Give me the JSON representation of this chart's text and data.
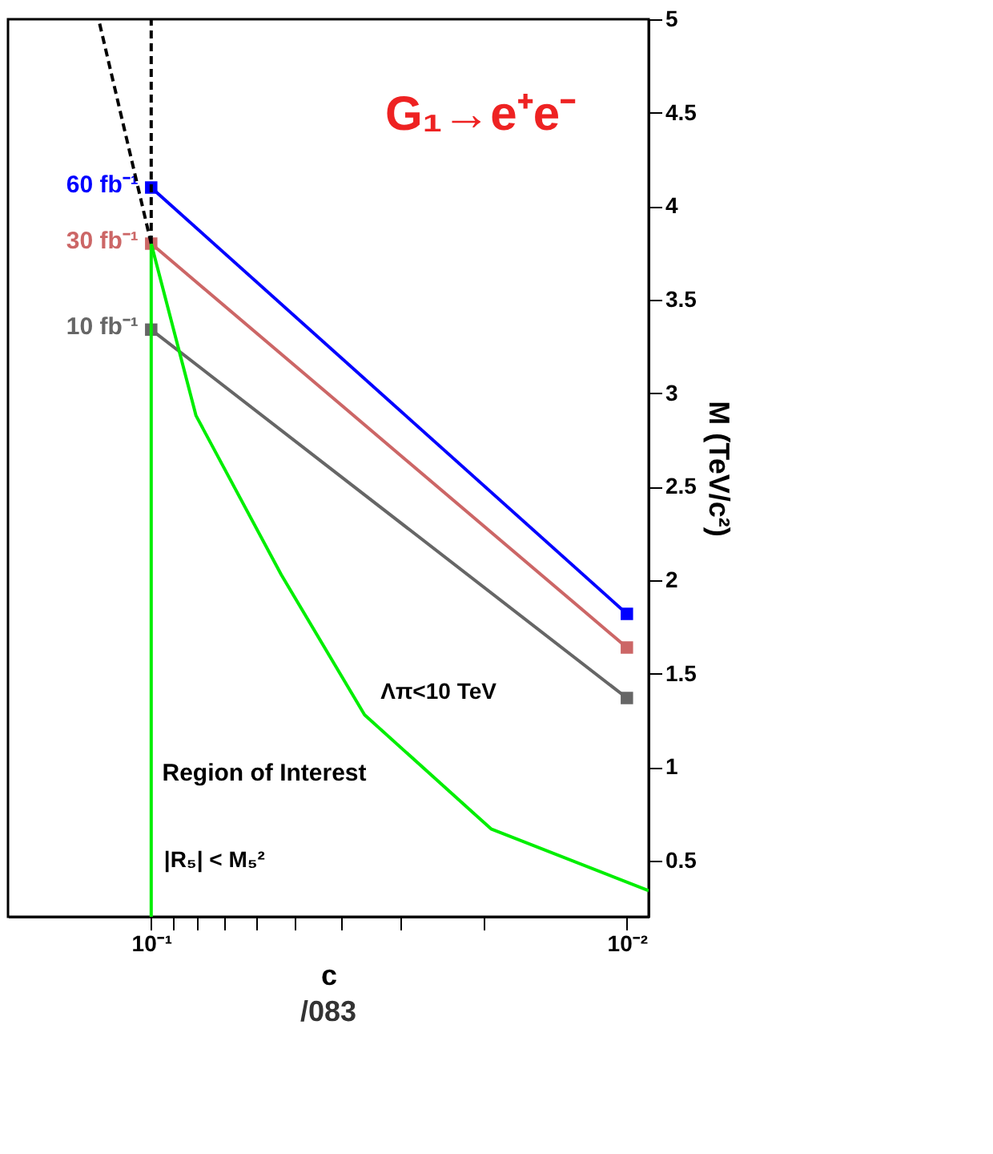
{
  "chart_data": {
    "type": "line",
    "xlabel": "c",
    "ylabel": "M (TeV/c²)",
    "log": "x",
    "xlim": [
      0.2,
      0.009
    ],
    "ylim": [
      0.2,
      5
    ],
    "xticks": [
      {
        "value": 0.1,
        "label": "10⁻¹"
      },
      {
        "value": 0.09,
        "label": null
      },
      {
        "value": 0.08,
        "label": null
      },
      {
        "value": 0.07,
        "label": null
      },
      {
        "value": 0.06,
        "label": null
      },
      {
        "value": 0.05,
        "label": null
      },
      {
        "value": 0.04,
        "label": null
      },
      {
        "value": 0.03,
        "label": null
      },
      {
        "value": 0.02,
        "label": null
      },
      {
        "value": 0.01,
        "label": "10⁻²"
      }
    ],
    "yticks": [
      0.5,
      1,
      1.5,
      2,
      2.5,
      3,
      3.5,
      4,
      4.5,
      5
    ],
    "grid": false,
    "series": [
      {
        "name": "10 fb⁻¹",
        "color": "#666666",
        "x": [
          0.1,
          0.01
        ],
        "values": [
          3.34,
          1.37
        ],
        "marker": "square",
        "line_style": "solid"
      },
      {
        "name": "30 fb⁻¹",
        "color": "#cc6666",
        "x": [
          0.1,
          0.01
        ],
        "values": [
          3.8,
          1.64
        ],
        "marker": "square",
        "line_style": "solid"
      },
      {
        "name": "60 fb⁻¹",
        "color": "#0000ff",
        "x": [
          0.1,
          0.01
        ],
        "values": [
          4.1,
          1.82
        ],
        "marker": "square",
        "line_style": "solid"
      },
      {
        "color": "#00ee00",
        "x": [
          0.1,
          0.1
        ],
        "values": [
          0.2,
          3.8
        ],
        "marker": "none",
        "line_style": "solid"
      },
      {
        "color": "#00ee00",
        "x": [
          0.1,
          0.0805,
          0.0533,
          0.0356,
          0.0193,
          0.009
        ],
        "values": [
          3.8,
          2.88,
          2.03,
          1.28,
          0.67,
          0.34
        ],
        "marker": "none",
        "line_style": "solid"
      },
      {
        "color": "#000000",
        "x": [
          0.1,
          0.1
        ],
        "values": [
          3.8,
          5
        ],
        "marker": "none",
        "line_style": "dashed"
      },
      {
        "color": "#000000",
        "x": [
          0.1,
          0.129
        ],
        "values": [
          3.8,
          5
        ],
        "marker": "none",
        "line_style": "dashed"
      }
    ],
    "annotations": [
      {
        "text": "|R₅| < M₅²",
        "x": 0.1,
        "y": 0.5
      },
      "Region of Interest",
      {
        "text": "Λπ<10 TeV",
        "x": 0.0356,
        "y": 1.28
      },
      "G₁→e⁺e⁻",
      "/083"
    ]
  }
}
